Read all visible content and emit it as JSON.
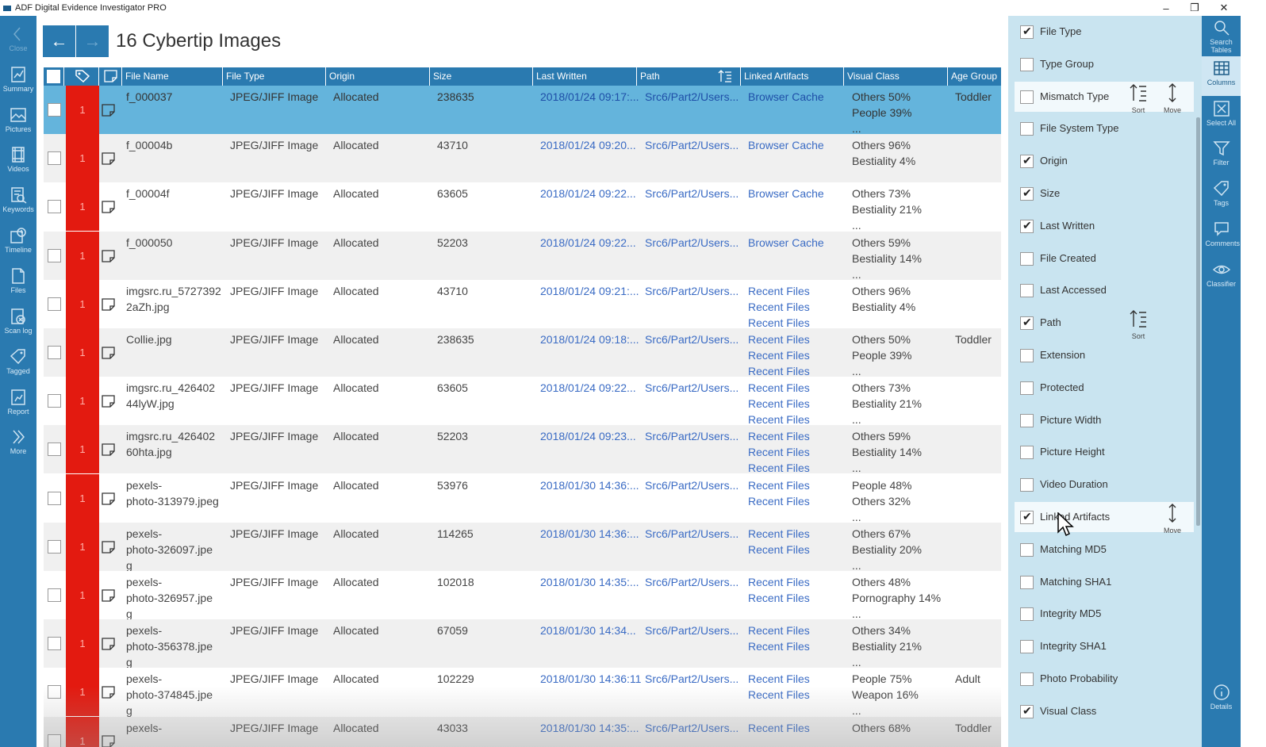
{
  "window": {
    "title": "ADF Digital Evidence Investigator PRO",
    "controls": [
      "–",
      "❐",
      "✕"
    ]
  },
  "left_nav": [
    {
      "label": "Close",
      "icon": "chevron-left-icon"
    },
    {
      "label": "Summary",
      "icon": "chart-icon"
    },
    {
      "label": "Pictures",
      "icon": "image-icon"
    },
    {
      "label": "Videos",
      "icon": "film-icon"
    },
    {
      "label": "Keywords",
      "icon": "keyword-icon"
    },
    {
      "label": "Timeline",
      "icon": "clock-icon"
    },
    {
      "label": "Files",
      "icon": "file-icon"
    },
    {
      "label": "Scan log",
      "icon": "scanlog-icon"
    },
    {
      "label": "Tagged",
      "icon": "tag-icon"
    },
    {
      "label": "Report",
      "icon": "report-icon"
    },
    {
      "label": "More",
      "icon": "double-chevron-icon"
    }
  ],
  "header": {
    "back": "←",
    "forward": "→",
    "title": "16 Cybertip Images"
  },
  "table": {
    "columns": [
      "File Name",
      "File Type",
      "Origin",
      "Size",
      "Last Written",
      "Path",
      "Linked Artifacts",
      "Visual Class",
      "Age Group"
    ],
    "rows": [
      {
        "tag": "1",
        "name": [
          "f_000037"
        ],
        "type": "JPEG/JIFF Image",
        "origin": "Allocated",
        "size": "238635",
        "written": "2018/01/24 09:17:...",
        "path": "Src6/Part2/Users...",
        "linked": [
          "Browser Cache"
        ],
        "visual": [
          "Others 50%",
          "People 39%",
          "..."
        ],
        "age": "Toddler"
      },
      {
        "tag": "1",
        "name": [
          "f_00004b"
        ],
        "type": "JPEG/JIFF Image",
        "origin": "Allocated",
        "size": "43710",
        "written": "2018/01/24 09:20...",
        "path": "Src6/Part2/Users...",
        "linked": [
          "Browser Cache"
        ],
        "visual": [
          "Others 96%",
          "Bestiality 4%"
        ],
        "age": ""
      },
      {
        "tag": "1",
        "name": [
          "f_00004f"
        ],
        "type": "JPEG/JIFF Image",
        "origin": "Allocated",
        "size": "63605",
        "written": "2018/01/24 09:22...",
        "path": "Src6/Part2/Users...",
        "linked": [
          "Browser Cache"
        ],
        "visual": [
          "Others 73%",
          "Bestiality 21%",
          "..."
        ],
        "age": ""
      },
      {
        "tag": "1",
        "name": [
          "f_000050"
        ],
        "type": "JPEG/JIFF Image",
        "origin": "Allocated",
        "size": "52203",
        "written": "2018/01/24 09:22...",
        "path": "Src6/Part2/Users...",
        "linked": [
          "Browser Cache"
        ],
        "visual": [
          "Others 59%",
          "Bestiality 14%",
          "..."
        ],
        "age": ""
      },
      {
        "tag": "1",
        "name": [
          "imgsrc.ru_5727392",
          "2aZh.jpg"
        ],
        "type": "JPEG/JIFF Image",
        "origin": "Allocated",
        "size": "43710",
        "written": "2018/01/24 09:21:...",
        "path": "Src6/Part2/Users...",
        "linked": [
          "Recent Files",
          "Recent Files",
          "Recent Files"
        ],
        "visual": [
          "Others 96%",
          "Bestiality 4%"
        ],
        "age": ""
      },
      {
        "tag": "1",
        "name": [
          "Collie.jpg"
        ],
        "type": "JPEG/JIFF Image",
        "origin": "Allocated",
        "size": "238635",
        "written": "2018/01/24 09:18:...",
        "path": "Src6/Part2/Users...",
        "linked": [
          "Recent Files",
          "Recent Files",
          "Recent Files"
        ],
        "visual": [
          "Others 50%",
          "People 39%",
          "..."
        ],
        "age": "Toddler"
      },
      {
        "tag": "1",
        "name": [
          "imgsrc.ru_426402",
          "44lyW.jpg"
        ],
        "type": "JPEG/JIFF Image",
        "origin": "Allocated",
        "size": "63605",
        "written": "2018/01/24 09:22...",
        "path": "Src6/Part2/Users...",
        "linked": [
          "Recent Files",
          "Recent Files",
          "Recent Files"
        ],
        "visual": [
          "Others 73%",
          "Bestiality 21%",
          "..."
        ],
        "age": ""
      },
      {
        "tag": "1",
        "name": [
          "imgsrc.ru_426402",
          "60hta.jpg"
        ],
        "type": "JPEG/JIFF Image",
        "origin": "Allocated",
        "size": "52203",
        "written": "2018/01/24 09:23...",
        "path": "Src6/Part2/Users...",
        "linked": [
          "Recent Files",
          "Recent Files",
          "Recent Files"
        ],
        "visual": [
          "Others 59%",
          "Bestiality 14%",
          "..."
        ],
        "age": ""
      },
      {
        "tag": "1",
        "name": [
          "pexels-",
          "photo-313979.jpeg"
        ],
        "type": "JPEG/JIFF Image",
        "origin": "Allocated",
        "size": "53976",
        "written": "2018/01/30 14:36:...",
        "path": "Src6/Part2/Users...",
        "linked": [
          "Recent Files",
          "Recent Files"
        ],
        "visual": [
          "People 48%",
          "Others 32%",
          "..."
        ],
        "age": ""
      },
      {
        "tag": "1",
        "name": [
          "pexels-",
          "photo-326097.jpe",
          "g"
        ],
        "type": "JPEG/JIFF Image",
        "origin": "Allocated",
        "size": "114265",
        "written": "2018/01/30 14:36:...",
        "path": "Src6/Part2/Users...",
        "linked": [
          "Recent Files",
          "Recent Files"
        ],
        "visual": [
          "Others 67%",
          "Bestiality 20%",
          "..."
        ],
        "age": ""
      },
      {
        "tag": "1",
        "name": [
          "pexels-",
          "photo-326957.jpe",
          "g"
        ],
        "type": "JPEG/JIFF Image",
        "origin": "Allocated",
        "size": "102018",
        "written": "2018/01/30 14:35:...",
        "path": "Src6/Part2/Users...",
        "linked": [
          "Recent Files",
          "Recent Files"
        ],
        "visual": [
          "Others 48%",
          "Pornography 14%",
          "..."
        ],
        "age": ""
      },
      {
        "tag": "1",
        "name": [
          "pexels-",
          "photo-356378.jpe",
          "g"
        ],
        "type": "JPEG/JIFF Image",
        "origin": "Allocated",
        "size": "67059",
        "written": "2018/01/30 14:34...",
        "path": "Src6/Part2/Users...",
        "linked": [
          "Recent Files",
          "Recent Files"
        ],
        "visual": [
          "Others 34%",
          "Bestiality 21%",
          "..."
        ],
        "age": ""
      },
      {
        "tag": "1",
        "name": [
          "pexels-",
          "photo-374845.jpe",
          "g"
        ],
        "type": "JPEG/JIFF Image",
        "origin": "Allocated",
        "size": "102229",
        "written": "2018/01/30 14:36:11",
        "path": "Src6/Part2/Users...",
        "linked": [
          "Recent Files",
          "Recent Files"
        ],
        "visual": [
          "People 75%",
          "Weapon 16%",
          "..."
        ],
        "age": "Adult"
      },
      {
        "tag": "1",
        "name": [
          "pexels-"
        ],
        "type": "JPEG/JIFF Image",
        "origin": "Allocated",
        "size": "43033",
        "written": "2018/01/30 14:35:...",
        "path": "Src6/Part2/Users...",
        "linked": [
          "Recent Files"
        ],
        "visual": [
          "Others 68%"
        ],
        "age": "Toddler"
      }
    ]
  },
  "column_panel": {
    "sort_label": "Sort",
    "move_label": "Move",
    "items": [
      {
        "label": "File Type",
        "checked": true
      },
      {
        "label": "Type Group",
        "checked": false
      },
      {
        "label": "Mismatch Type",
        "checked": false
      },
      {
        "label": "File System Type",
        "checked": false
      },
      {
        "label": "Origin",
        "checked": true
      },
      {
        "label": "Size",
        "checked": true
      },
      {
        "label": "Last Written",
        "checked": true
      },
      {
        "label": "File Created",
        "checked": false
      },
      {
        "label": "Last Accessed",
        "checked": false
      },
      {
        "label": "Path",
        "checked": true
      },
      {
        "label": "Extension",
        "checked": false
      },
      {
        "label": "Protected",
        "checked": false
      },
      {
        "label": "Picture Width",
        "checked": false
      },
      {
        "label": "Picture Height",
        "checked": false
      },
      {
        "label": "Video Duration",
        "checked": false
      },
      {
        "label": "Linked Artifacts",
        "checked": true
      },
      {
        "label": "Matching MD5",
        "checked": false
      },
      {
        "label": "Matching SHA1",
        "checked": false
      },
      {
        "label": "Integrity MD5",
        "checked": false
      },
      {
        "label": "Integrity SHA1",
        "checked": false
      },
      {
        "label": "Photo Probability",
        "checked": false
      },
      {
        "label": "Visual Class",
        "checked": true
      }
    ]
  },
  "right_rail": [
    {
      "label": "Search Tables",
      "icon": "search-icon"
    },
    {
      "label": "Columns",
      "icon": "columns-icon"
    },
    {
      "label": "Select All",
      "icon": "select-all-icon"
    },
    {
      "label": "Filter",
      "icon": "filter-icon"
    },
    {
      "label": "Tags",
      "icon": "tag-icon"
    },
    {
      "label": "Comments",
      "icon": "comment-icon"
    },
    {
      "label": "Classifier",
      "icon": "eye-icon"
    },
    {
      "label": "Details",
      "icon": "info-icon"
    }
  ],
  "colors": {
    "accent": "#2a7ab0",
    "selected_row": "#64b4dc",
    "tag": "#e31a10",
    "link": "#3a6bc4",
    "panel": "#c9e4f0"
  }
}
